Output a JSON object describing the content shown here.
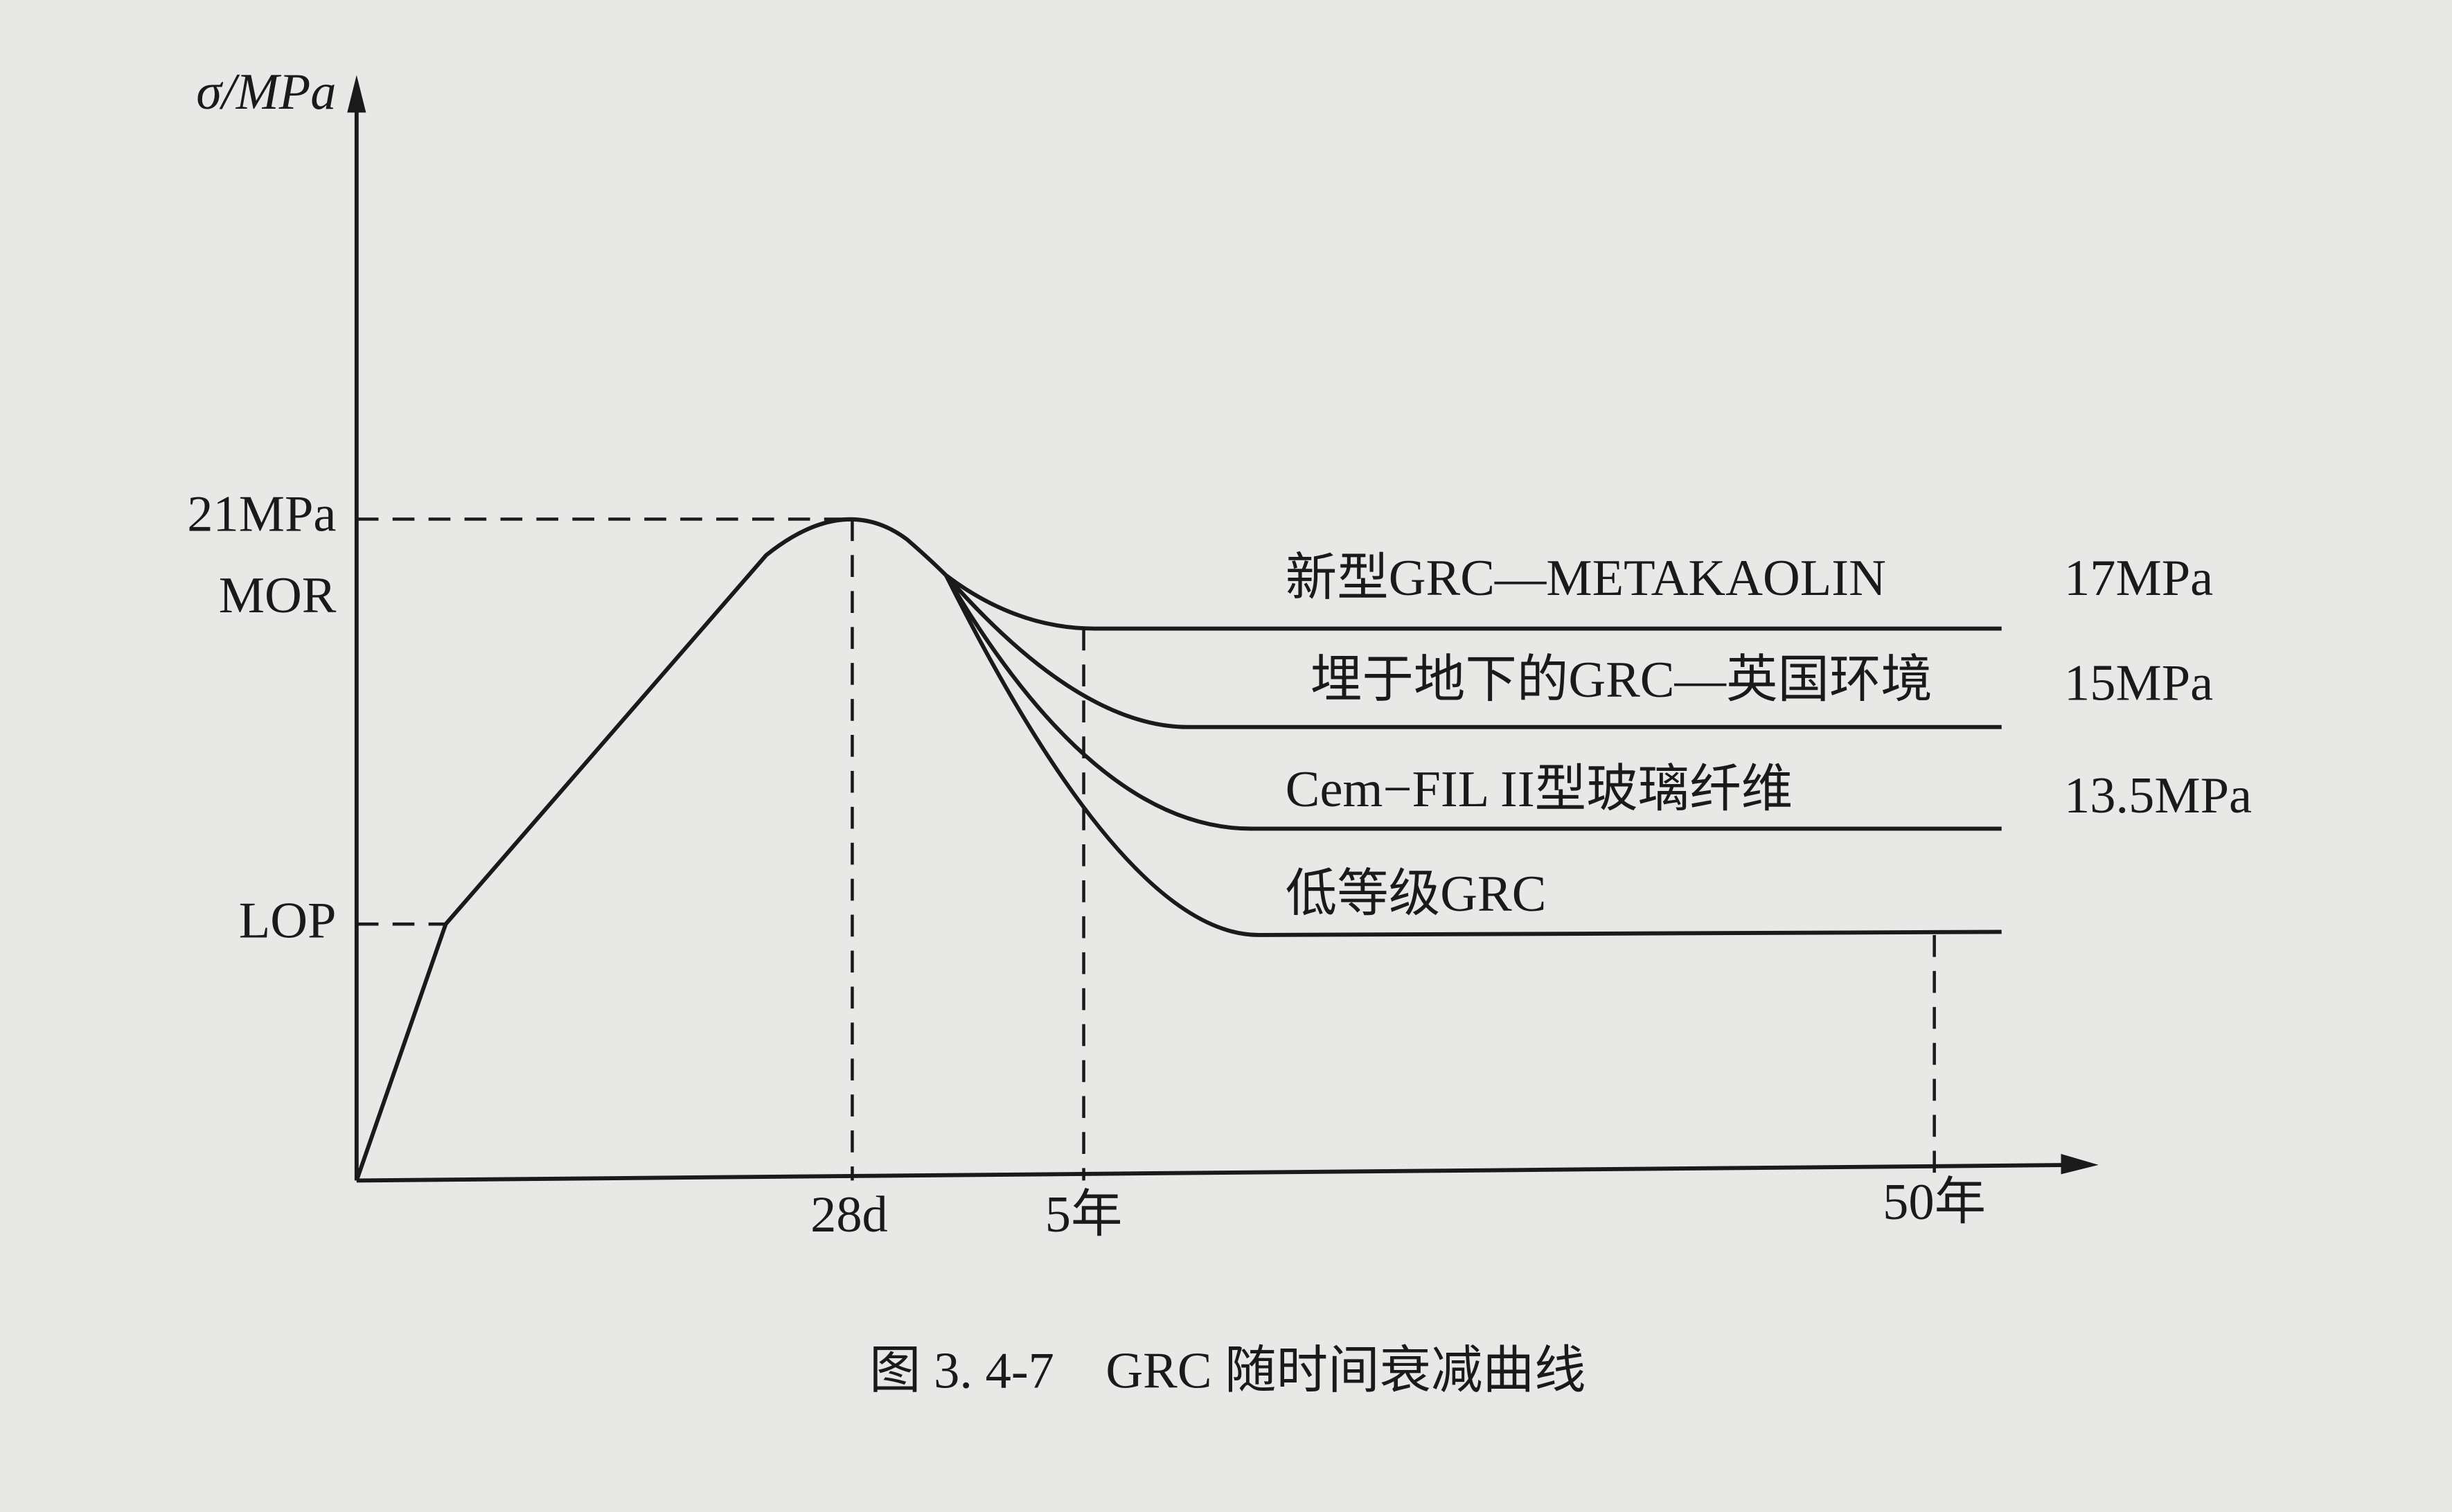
{
  "y_axis_label": "σ/MPa",
  "y_levels": [
    "21MPa",
    "MOR",
    "LOP"
  ],
  "x_labels": [
    "28d",
    "5年",
    "50年"
  ],
  "curves": [
    {
      "label": "新型GRC—METAKAOLIN",
      "value": "17MPa"
    },
    {
      "label": "埋于地下的GRC—英国环境",
      "value": "15MPa"
    },
    {
      "label": "Cem−FIL II型玻璃纤维",
      "value": "13.5MPa"
    },
    {
      "label": "低等级GRC"
    }
  ],
  "caption": "图 3. 4-7　GRC 随时间衰减曲线"
}
